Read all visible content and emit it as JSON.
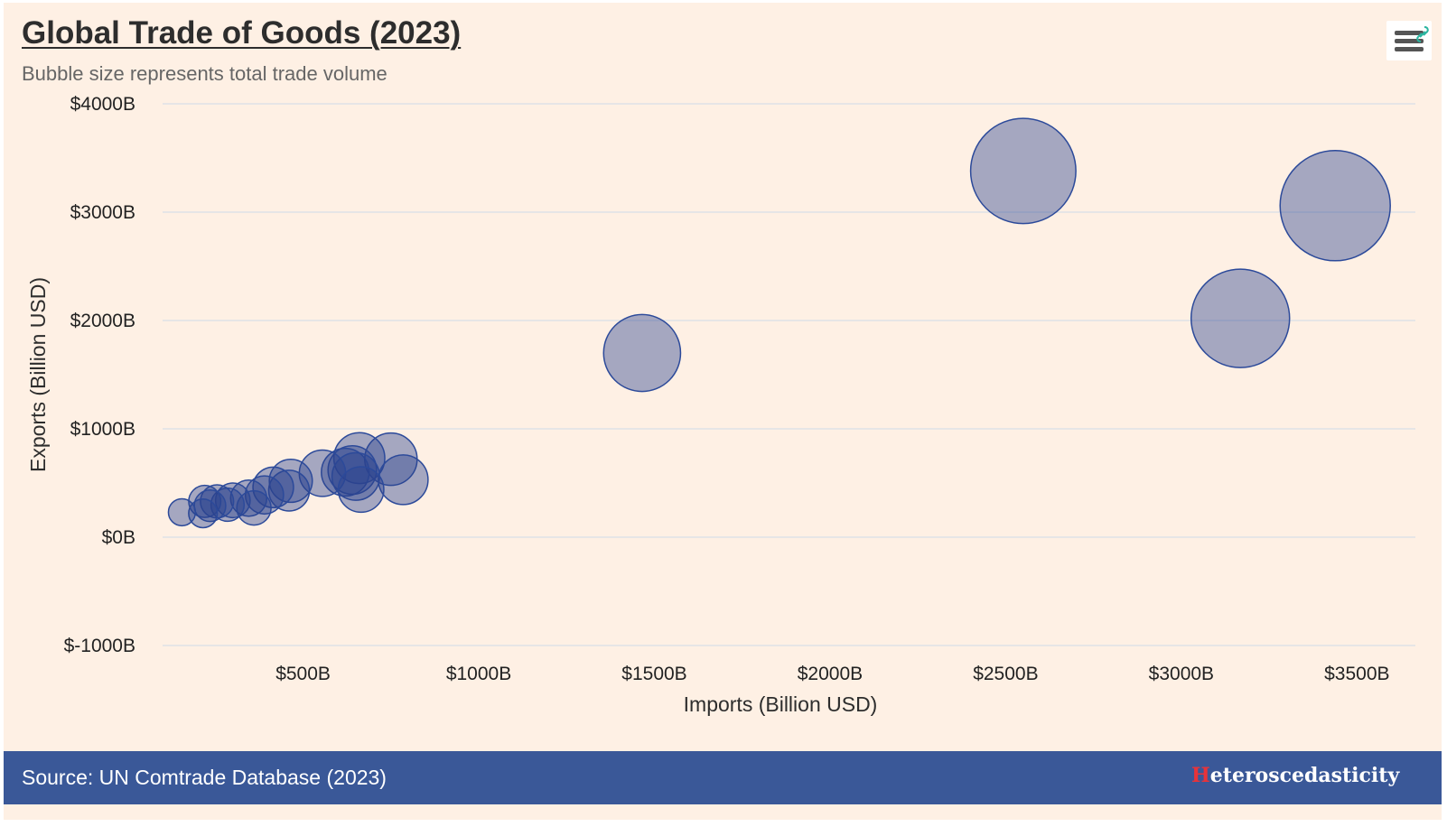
{
  "chart": {
    "title": "Global Trade of Goods (2023)",
    "subtitle": "Bubble size represents total trade volume"
  },
  "menu": {
    "icon": "hamburger-menu-icon",
    "link_icon": "link-icon"
  },
  "colors": {
    "background": "#fef0e4",
    "bubble_fill": "#2b438e",
    "bubble_stroke": "#2c4a9a",
    "footer": "#3a5898",
    "brand_accent": "#e8333a",
    "link_icon": "#2bb5a0"
  },
  "footer": {
    "source": "Source: UN Comtrade Database (2023)",
    "brand_initial": "H",
    "brand_rest": "eteroscedasticity"
  },
  "chart_data": {
    "type": "scatter",
    "bubble": true,
    "title": "Global Trade of Goods (2023)",
    "subtitle": "Bubble size represents total trade volume",
    "xlabel": "Imports (Billion USD)",
    "ylabel": "Exports (Billion USD)",
    "xlim": [
      100,
      3620
    ],
    "ylim": [
      -1000,
      4000
    ],
    "x_ticks": [
      500,
      1000,
      1500,
      2000,
      2500,
      3000,
      3500
    ],
    "x_tick_labels": [
      "$500B",
      "$1000B",
      "$1500B",
      "$2000B",
      "$2500B",
      "$3000B",
      "$3500B"
    ],
    "y_ticks": [
      -1000,
      0,
      1000,
      2000,
      3000,
      4000
    ],
    "y_tick_labels": [
      "$-1000B",
      "$0B",
      "$1000B",
      "$2000B",
      "$3000B",
      "$4000B"
    ],
    "grid": "horizontal",
    "legend": "none",
    "points": [
      {
        "x": 3168,
        "y": 2020,
        "z": 5190
      },
      {
        "x": 2550,
        "y": 3380,
        "z": 5930
      },
      {
        "x": 3438,
        "y": 3060,
        "z": 6500
      },
      {
        "x": 1465,
        "y": 1700,
        "z": 3170
      },
      {
        "x": 660,
        "y": 730,
        "z": 1390
      },
      {
        "x": 750,
        "y": 720,
        "z": 1470
      },
      {
        "x": 785,
        "y": 530,
        "z": 1320
      },
      {
        "x": 665,
        "y": 440,
        "z": 1110
      },
      {
        "x": 640,
        "y": 620,
        "z": 1260
      },
      {
        "x": 620,
        "y": 600,
        "z": 1220
      },
      {
        "x": 650,
        "y": 560,
        "z": 1210
      },
      {
        "x": 555,
        "y": 590,
        "z": 1150
      },
      {
        "x": 465,
        "y": 520,
        "z": 990
      },
      {
        "x": 460,
        "y": 430,
        "z": 890
      },
      {
        "x": 415,
        "y": 460,
        "z": 880
      },
      {
        "x": 390,
        "y": 390,
        "z": 780
      },
      {
        "x": 360,
        "y": 270,
        "z": 630
      },
      {
        "x": 345,
        "y": 360,
        "z": 700
      },
      {
        "x": 300,
        "y": 340,
        "z": 640
      },
      {
        "x": 285,
        "y": 300,
        "z": 590
      },
      {
        "x": 255,
        "y": 330,
        "z": 590
      },
      {
        "x": 235,
        "y": 290,
        "z": 530
      },
      {
        "x": 220,
        "y": 330,
        "z": 550
      },
      {
        "x": 215,
        "y": 220,
        "z": 440
      },
      {
        "x": 155,
        "y": 230,
        "z": 390
      }
    ]
  }
}
